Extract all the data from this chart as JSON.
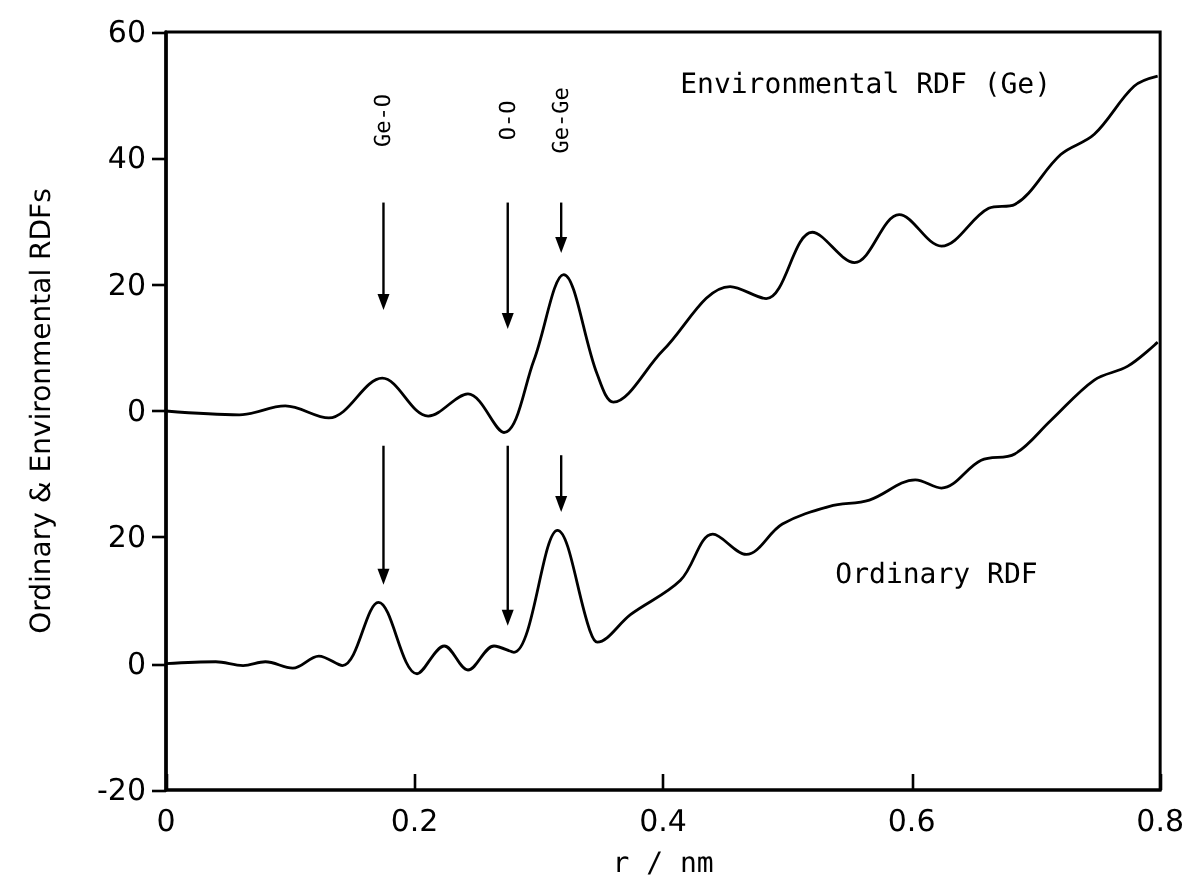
{
  "chart_data": {
    "type": "line",
    "xlabel": "r / nm",
    "ylabel": "Ordinary & Environmental RDFs",
    "xlim": [
      0,
      0.8
    ],
    "xticks": [
      0,
      0.2,
      0.4,
      0.6,
      0.8
    ],
    "ylim": [
      -20,
      100
    ],
    "yticks": [
      -20,
      0,
      20
    ],
    "y2lim": [
      -60,
      60
    ],
    "y2ticks": [
      0,
      20,
      40,
      60
    ],
    "grid": false,
    "legend": false,
    "marker": "none",
    "line_style": "solid",
    "series": [
      {
        "name": "Environmental RDF (Ge)",
        "color": "#000000",
        "axis": "y2",
        "x": [
          0,
          0.059,
          0.096,
          0.131,
          0.174,
          0.211,
          0.243,
          0.272,
          0.296,
          0.32,
          0.347,
          0.36,
          0.4,
          0.454,
          0.483,
          0.52,
          0.554,
          0.59,
          0.624,
          0.662,
          0.683,
          0.72,
          0.747,
          0.779,
          0.798
        ],
        "values": [
          0,
          -0.6,
          0.8,
          -1.1,
          5.2,
          -0.8,
          2.7,
          -3.4,
          8,
          21.6,
          5.8,
          1.4,
          9.6,
          19.7,
          17.8,
          28.3,
          23.5,
          31.1,
          26.1,
          32.1,
          32.7,
          40.6,
          43.8,
          51.4,
          53
        ]
      },
      {
        "name": "Ordinary RDF",
        "color": "#000000",
        "x": [
          0,
          0.04,
          0.062,
          0.08,
          0.102,
          0.123,
          0.142,
          0.171,
          0.202,
          0.224,
          0.243,
          0.264,
          0.28,
          0.315,
          0.341,
          0.347,
          0.374,
          0.414,
          0.44,
          0.467,
          0.496,
          0.534,
          0.566,
          0.603,
          0.624,
          0.656,
          0.683,
          0.712,
          0.747,
          0.774,
          0.798
        ],
        "values": [
          0,
          0.3,
          -0.3,
          0.3,
          -0.7,
          1.2,
          -0.3,
          9.7,
          -1.6,
          2.8,
          -1,
          2.8,
          1.8,
          21.1,
          5.3,
          3.4,
          7.8,
          13.2,
          20.5,
          17.3,
          22.1,
          24.9,
          25.9,
          29.1,
          27.8,
          32.2,
          33.2,
          38.5,
          44.9,
          47.1,
          50.9
        ]
      }
    ],
    "annotations": [
      "Ge-O",
      "O-O",
      "Ge-Ge"
    ]
  }
}
